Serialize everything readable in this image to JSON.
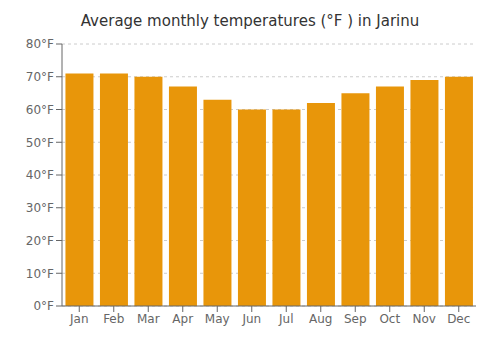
{
  "chart_data": {
    "type": "bar",
    "title": "Average monthly temperatures (°F ) in Jarinu",
    "categories": [
      "Jan",
      "Feb",
      "Mar",
      "Apr",
      "May",
      "Jun",
      "Jul",
      "Aug",
      "Sep",
      "Oct",
      "Nov",
      "Dec"
    ],
    "values": [
      71,
      71,
      70,
      67,
      63,
      60,
      60,
      62,
      65,
      67,
      69,
      70
    ],
    "color": "#E8960A",
    "ylim": [
      0,
      80
    ],
    "yticks": [
      {
        "value": 0,
        "label": "0°F"
      },
      {
        "value": 10,
        "label": "10°F"
      },
      {
        "value": 20,
        "label": "20°F"
      },
      {
        "value": 30,
        "label": "30°F"
      },
      {
        "value": 40,
        "label": "40°F"
      },
      {
        "value": 50,
        "label": "50°F"
      },
      {
        "value": 60,
        "label": "60°F"
      },
      {
        "value": 70,
        "label": "70°F"
      },
      {
        "value": 80,
        "label": "80°F"
      }
    ],
    "grid": true
  }
}
